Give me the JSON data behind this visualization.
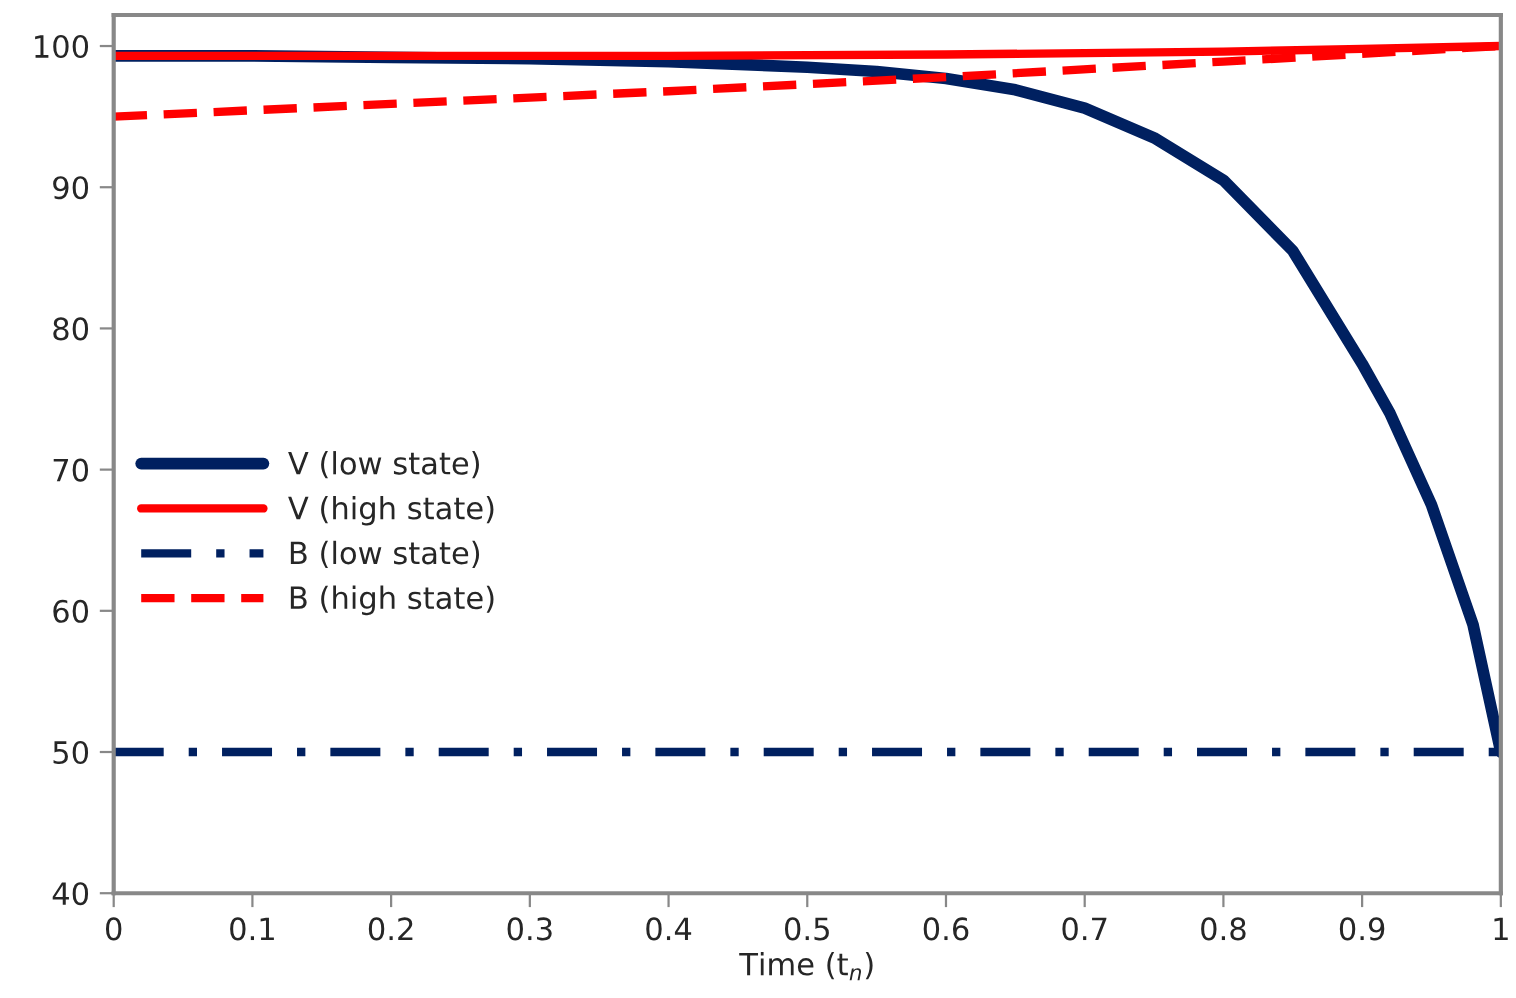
{
  "chart_data": {
    "type": "line",
    "xlabel": "Time (t$_{n}$)",
    "xlim": [
      0,
      1
    ],
    "ylim": [
      40,
      102.2
    ],
    "xticks": [
      0,
      0.1,
      0.2,
      0.3,
      0.4,
      0.5,
      0.6,
      0.7,
      0.8,
      0.9,
      1
    ],
    "yticks": [
      40,
      50,
      60,
      70,
      80,
      90,
      100
    ],
    "grid": false,
    "legend": "left",
    "marker": "none",
    "series": [
      {
        "name": "V (low state)",
        "color": "#002060",
        "line_style": "solid",
        "x": [
          0,
          0.1,
          0.2,
          0.3,
          0.4,
          0.5,
          0.55,
          0.6,
          0.65,
          0.7,
          0.75,
          0.8,
          0.85,
          0.9,
          0.92,
          0.95,
          0.98,
          1.0
        ],
        "values": [
          99.3,
          99.3,
          99.2,
          99.1,
          98.9,
          98.5,
          98.2,
          97.7,
          96.9,
          95.6,
          93.5,
          90.5,
          85.5,
          77.5,
          74,
          67.5,
          59,
          50
        ]
      },
      {
        "name": "V (high state)",
        "color": "#ff0000",
        "line_style": "solid",
        "x": [
          0,
          0.2,
          0.4,
          0.6,
          0.7,
          0.8,
          0.9,
          1.0
        ],
        "values": [
          99.3,
          99.3,
          99.3,
          99.4,
          99.5,
          99.6,
          99.8,
          100
        ]
      },
      {
        "name": "B (low state)",
        "color": "#002060",
        "line_style": "dashdot",
        "x": [
          0,
          1.0
        ],
        "values": [
          50,
          50
        ]
      },
      {
        "name": "B (high state)",
        "color": "#ff0000",
        "line_style": "dashed",
        "x": [
          0,
          0.2,
          0.4,
          0.6,
          0.8,
          1.0
        ],
        "values": [
          95,
          95.9,
          96.8,
          97.8,
          98.9,
          100
        ]
      }
    ]
  }
}
